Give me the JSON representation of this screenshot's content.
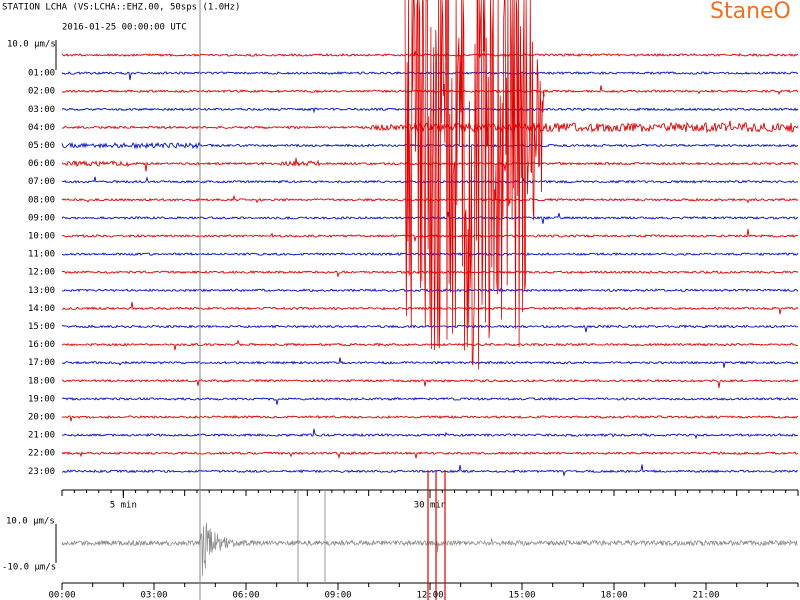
{
  "header": {
    "station": "STATION LCHA (VS:LCHA::EHZ.00, 50sps (1.0Hz)",
    "start": "2016-01-25 00:00:00 UTC",
    "logo": "StaneO"
  },
  "helicorder": {
    "scale_label": "10.0 µm/s",
    "row_labels": [
      "01:00",
      "02:00",
      "03:00",
      "04:00",
      "05:00",
      "06:00",
      "07:00",
      "08:00",
      "09:00",
      "10:00",
      "11:00",
      "12:00",
      "13:00",
      "14:00",
      "15:00",
      "16:00",
      "17:00",
      "18:00",
      "19:00",
      "20:00",
      "21:00",
      "22:00",
      "23:00"
    ],
    "trace_colors": [
      "#e00000",
      "#0010c8"
    ],
    "xlim": [
      0,
      60
    ],
    "minute_ticks": [
      {
        "value": 5,
        "label": "5 min"
      },
      {
        "value": 30,
        "label": "30 min"
      }
    ]
  },
  "overview": {
    "top_label": "10.0 µm/s",
    "bottom_label": "-10.0 µm/s",
    "xlim": [
      0,
      24
    ],
    "xticks": [
      {
        "value": 0,
        "label": "00:00"
      },
      {
        "value": 3,
        "label": "03:00"
      },
      {
        "value": 6,
        "label": "06:00"
      },
      {
        "value": 9,
        "label": "09:00"
      },
      {
        "value": 12,
        "label": "12:00"
      },
      {
        "value": 15,
        "label": "15:00"
      },
      {
        "value": 18,
        "label": "18:00"
      },
      {
        "value": 21,
        "label": "21:00"
      }
    ]
  }
}
